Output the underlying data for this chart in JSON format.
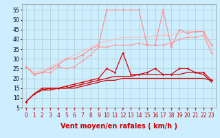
{
  "xlabel": "Vent moyen/en rafales ( km/h )",
  "x": [
    0,
    1,
    2,
    3,
    4,
    5,
    6,
    7,
    8,
    9,
    10,
    11,
    12,
    13,
    14,
    15,
    16,
    17,
    18,
    19,
    20,
    21,
    22,
    23
  ],
  "series": [
    {
      "name": "dark_red_plain",
      "color": "#cc0000",
      "linewidth": 0.9,
      "marker": null,
      "zorder": 5,
      "y": [
        8,
        12,
        14,
        15,
        15,
        15,
        15,
        16,
        17,
        18,
        19,
        19,
        20,
        20,
        20,
        20,
        20,
        20,
        20,
        20,
        20,
        20,
        20,
        19
      ]
    },
    {
      "name": "dark_red_markers",
      "color": "#dd0000",
      "linewidth": 0.9,
      "marker": "D",
      "markersize": 1.8,
      "zorder": 6,
      "y": [
        8,
        12,
        15,
        15,
        15,
        16,
        17,
        18,
        19,
        20,
        25,
        23,
        33,
        22,
        22,
        23,
        25,
        22,
        22,
        25,
        25,
        23,
        23,
        19
      ]
    },
    {
      "name": "dark_red_plain2",
      "color": "#cc0000",
      "linewidth": 0.9,
      "marker": null,
      "zorder": 4,
      "y": [
        8,
        12,
        14,
        14,
        15,
        15,
        16,
        17,
        18,
        19,
        20,
        21,
        21,
        21,
        22,
        22,
        22,
        22,
        22,
        22,
        23,
        23,
        22,
        18
      ]
    },
    {
      "name": "pink_markers_high",
      "color": "#ff8888",
      "linewidth": 0.8,
      "marker": "D",
      "markersize": 1.8,
      "zorder": 3,
      "y": [
        26,
        22,
        23,
        25,
        27,
        30,
        30,
        32,
        35,
        37,
        55,
        55,
        55,
        55,
        55,
        37,
        37,
        55,
        36,
        45,
        43,
        44,
        44,
        37
      ]
    },
    {
      "name": "pink_plain_upper",
      "color": "#ffbbbb",
      "linewidth": 0.8,
      "marker": null,
      "zorder": 1,
      "y": [
        26,
        23,
        24,
        26,
        28,
        30,
        32,
        34,
        36,
        38,
        39,
        40,
        41,
        41,
        41,
        41,
        42,
        42,
        42,
        43,
        44,
        44,
        44,
        33
      ]
    },
    {
      "name": "pink_markers_mid",
      "color": "#ff9999",
      "linewidth": 0.8,
      "marker": "D",
      "markersize": 1.8,
      "zorder": 2,
      "y": [
        26,
        22,
        23,
        23,
        26,
        25,
        26,
        29,
        32,
        36,
        36,
        37,
        37,
        37,
        38,
        37,
        37,
        37,
        38,
        40,
        41,
        41,
        42,
        33
      ]
    }
  ],
  "ylim": [
    5,
    58
  ],
  "yticks": [
    5,
    10,
    15,
    20,
    25,
    30,
    35,
    40,
    45,
    50,
    55
  ],
  "xlim": [
    -0.5,
    23.5
  ],
  "xticks": [
    0,
    1,
    2,
    3,
    4,
    5,
    6,
    7,
    8,
    9,
    10,
    11,
    12,
    13,
    14,
    15,
    16,
    17,
    18,
    19,
    20,
    21,
    22,
    23
  ],
  "bg_color": "#cceeff",
  "grid_color": "#aacccc",
  "arrow_color": "#cc0000",
  "xlabel_color": "#cc0000",
  "xlabel_fontsize": 7,
  "tick_fontsize": 5.5
}
